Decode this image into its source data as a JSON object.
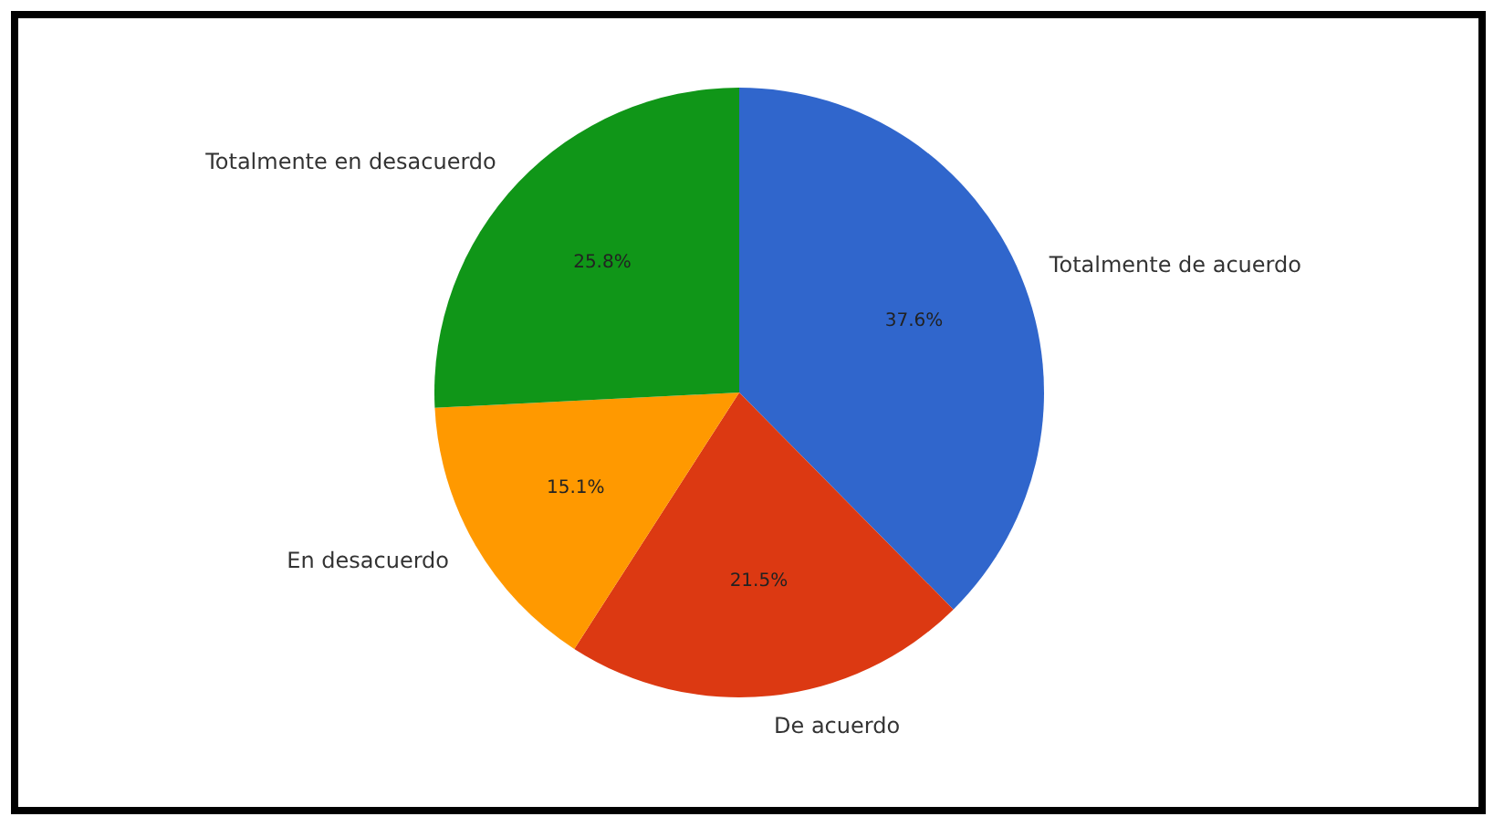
{
  "chart_data": {
    "type": "pie",
    "categories": [
      "Totalmente de acuerdo",
      "De acuerdo",
      "En desacuerdo",
      "Totalmente en desacuerdo"
    ],
    "values": [
      37.6,
      21.5,
      15.1,
      25.8
    ],
    "colors": [
      "#3066cc",
      "#dc3912",
      "#ff9900",
      "#109618"
    ],
    "value_labels": [
      "37.6%",
      "21.5%",
      "15.1%",
      "25.8%"
    ],
    "legend": false
  }
}
